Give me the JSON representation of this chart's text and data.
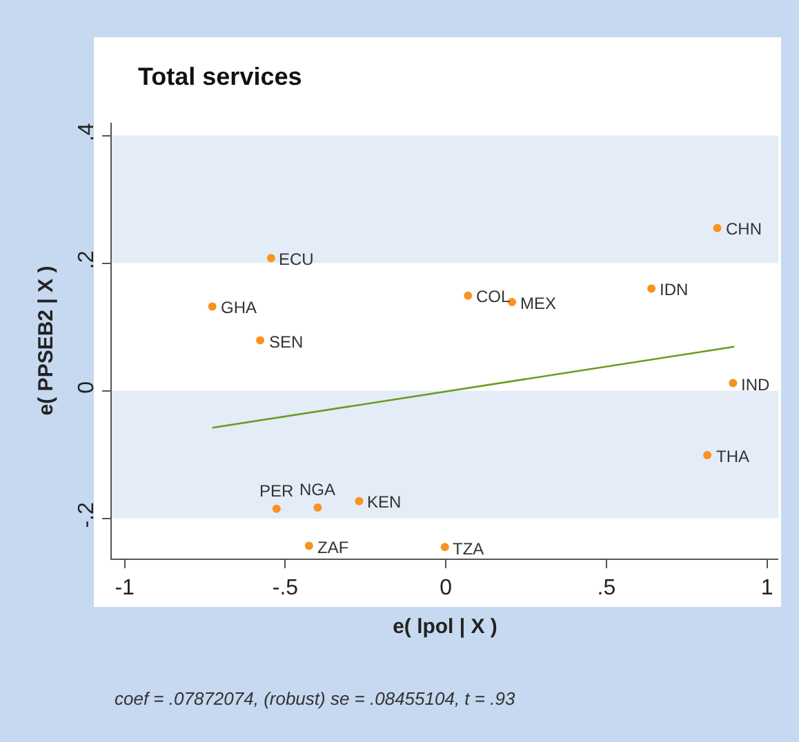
{
  "chart_data": {
    "type": "scatter",
    "title": "Total services",
    "xlabel": "e( lpol | X )",
    "ylabel": "e( PPSEB2 | X )",
    "xlim": [
      -1.04,
      1.035
    ],
    "ylim": [
      -0.263,
      0.42
    ],
    "xticks": [
      {
        "value": -1,
        "label": "-1"
      },
      {
        "value": -0.5,
        "label": "-.5"
      },
      0,
      {
        "value": 0.5,
        "label": ".5"
      },
      1
    ],
    "yticks": [
      {
        "value": -0.2,
        "label": "-.2"
      },
      0,
      {
        "value": 0.2,
        "label": ".2"
      },
      {
        "value": 0.4,
        "label": ".4"
      }
    ],
    "grid": false,
    "marker": "circle",
    "bands": [
      {
        "axis": "y",
        "from": 0.2,
        "to": 0.4,
        "color": "#e4ecf7"
      },
      {
        "axis": "y",
        "from": -0.2,
        "to": 0,
        "color": "#e4ecf7"
      }
    ],
    "series": [
      {
        "type": "scatter",
        "color": "#f7931e",
        "x": [
          0.845,
          -0.544,
          0.069,
          0.206,
          0.64,
          -0.727,
          -0.578,
          0.894,
          0.814,
          -0.527,
          -0.399,
          -0.27,
          -0.426,
          -0.003
        ],
        "values": [
          0.255,
          0.208,
          0.149,
          0.139,
          0.16,
          0.132,
          0.079,
          0.012,
          -0.101,
          -0.185,
          -0.183,
          -0.173,
          -0.243,
          -0.245
        ]
      },
      {
        "type": "line",
        "color": "#6b9a1f",
        "line_style": "solid",
        "marker": "none",
        "x": [
          -0.727,
          0.898
        ],
        "values": [
          -0.058,
          0.069
        ]
      }
    ],
    "annotations": [
      {
        "text": "CHN",
        "x": 0.845,
        "y": 0.255
      },
      {
        "text": "ECU",
        "x": -0.544,
        "y": 0.208
      },
      {
        "text": "COL",
        "x": 0.069,
        "y": 0.149
      },
      {
        "text": "MEX",
        "x": 0.206,
        "y": 0.139
      },
      {
        "text": "IDN",
        "x": 0.64,
        "y": 0.16
      },
      {
        "text": "GHA",
        "x": -0.727,
        "y": 0.132
      },
      {
        "text": "SEN",
        "x": -0.578,
        "y": 0.079
      },
      {
        "text": "IND",
        "x": 0.894,
        "y": 0.012
      },
      {
        "text": "THA",
        "x": 0.814,
        "y": -0.101
      },
      {
        "text": "PER",
        "x": -0.527,
        "y": -0.185
      },
      {
        "text": "NGA",
        "x": -0.399,
        "y": -0.183
      },
      {
        "text": "KEN",
        "x": -0.27,
        "y": -0.173
      },
      {
        "text": "ZAF",
        "x": -0.426,
        "y": -0.243
      },
      {
        "text": "TZA",
        "x": -0.003,
        "y": -0.245
      },
      "coef = .07872074, (robust) se = .08455104, t = .93"
    ]
  }
}
